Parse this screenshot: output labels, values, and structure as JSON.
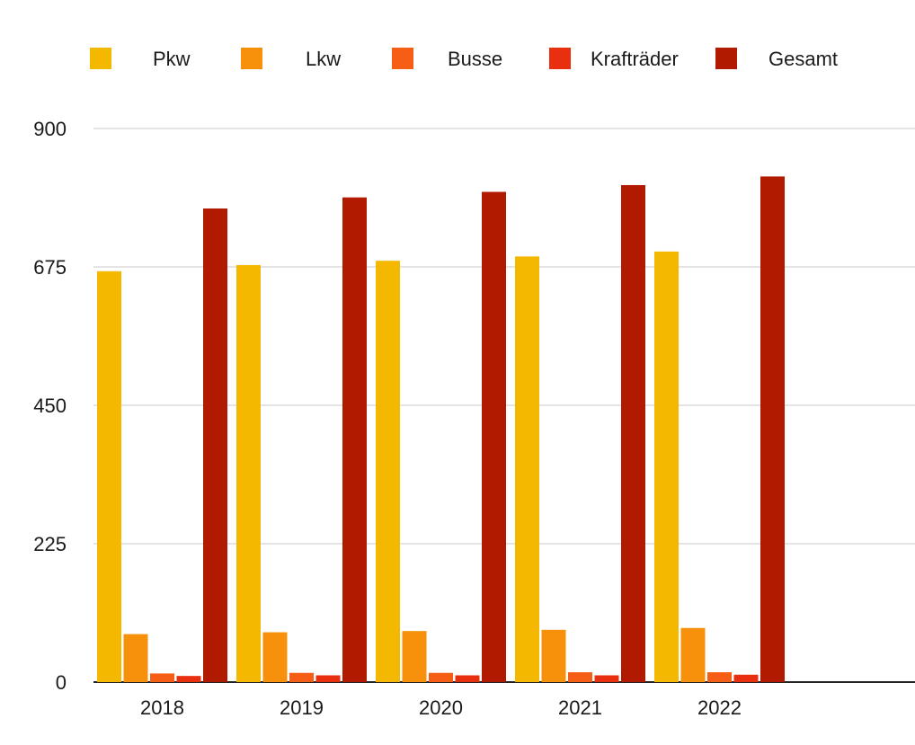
{
  "chart_data": {
    "type": "bar",
    "categories": [
      "2018",
      "2019",
      "2020",
      "2021",
      "2022"
    ],
    "series": [
      {
        "name": "Pkw",
        "color": "#f5b800",
        "values": [
          668,
          678,
          685,
          692,
          700
        ]
      },
      {
        "name": "Lkw",
        "color": "#f7900a",
        "values": [
          78,
          81,
          83,
          85,
          88
        ]
      },
      {
        "name": "Busse",
        "color": "#f55e14",
        "values": [
          14,
          15,
          15,
          16,
          16
        ]
      },
      {
        "name": "Krafträder",
        "color": "#e83010",
        "values": [
          10,
          11,
          11,
          11,
          12
        ]
      },
      {
        "name": "Gesamt",
        "color": "#b21a00",
        "values": [
          770,
          788,
          797,
          808,
          822
        ]
      }
    ],
    "y_ticks": [
      "0",
      "225",
      "450",
      "675",
      "900"
    ],
    "ylim": [
      0,
      900
    ],
    "grid": true,
    "legend_position": "top",
    "title": "",
    "xlabel": "",
    "ylabel": ""
  }
}
